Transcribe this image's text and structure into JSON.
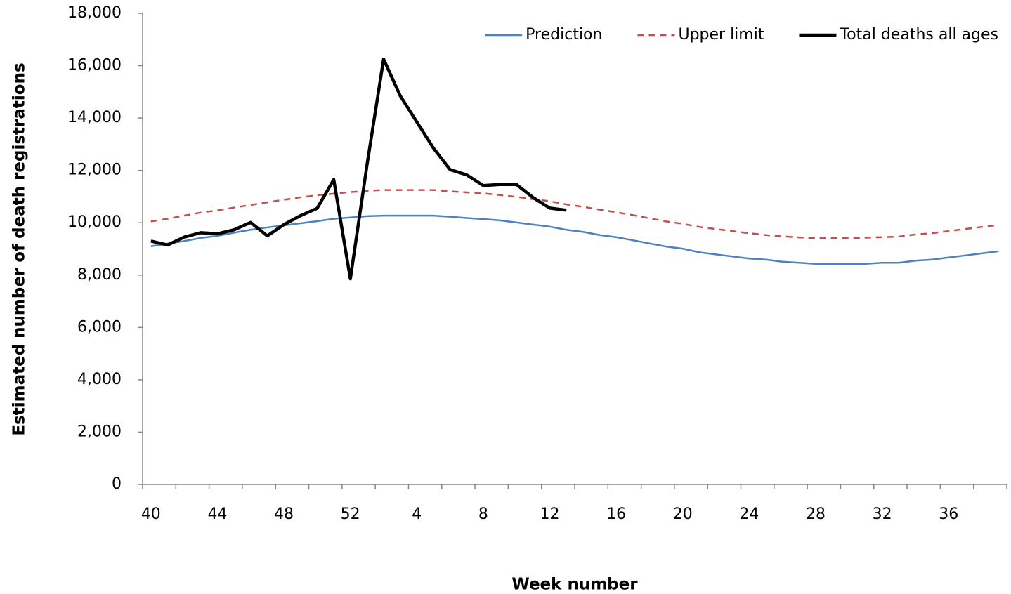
{
  "chart_data": {
    "type": "line",
    "x_label": "Week number",
    "y_label": "Estimated number of death registrations",
    "categories": [
      "40",
      null,
      null,
      null,
      "44",
      null,
      null,
      null,
      "48",
      null,
      null,
      null,
      "52",
      null,
      null,
      null,
      "4",
      null,
      null,
      null,
      "8",
      null,
      null,
      null,
      "12",
      null,
      null,
      null,
      "16",
      null,
      null,
      null,
      "20",
      null,
      null,
      null,
      "24",
      null,
      null,
      null,
      "28",
      null,
      null,
      null,
      "32",
      null,
      null,
      null,
      "36",
      null,
      null,
      null
    ],
    "series": [
      {
        "name": "Prediction",
        "color": "#4f81bd",
        "dash": false,
        "width": 2.5,
        "values": [
          9100,
          9200,
          9300,
          9420,
          9500,
          9620,
          9730,
          9820,
          9900,
          9980,
          10060,
          10150,
          10200,
          10250,
          10270,
          10270,
          10270,
          10270,
          10230,
          10180,
          10140,
          10090,
          10010,
          9930,
          9850,
          9730,
          9650,
          9530,
          9450,
          9330,
          9210,
          9090,
          9010,
          8870,
          8790,
          8710,
          8630,
          8590,
          8510,
          8470,
          8430,
          8430,
          8430,
          8430,
          8470,
          8470,
          8550,
          8590,
          8670,
          8750,
          8830,
          8910
        ]
      },
      {
        "name": "Upper limit",
        "color": "#c0504d",
        "dash": true,
        "width": 2.5,
        "values": [
          10050,
          10150,
          10270,
          10390,
          10470,
          10580,
          10680,
          10780,
          10880,
          10970,
          11050,
          11110,
          11170,
          11220,
          11250,
          11250,
          11250,
          11250,
          11200,
          11160,
          11120,
          11060,
          10990,
          10900,
          10820,
          10700,
          10610,
          10500,
          10400,
          10290,
          10170,
          10050,
          9960,
          9840,
          9760,
          9680,
          9600,
          9530,
          9480,
          9440,
          9410,
          9410,
          9410,
          9430,
          9450,
          9470,
          9550,
          9600,
          9680,
          9760,
          9840,
          9910
        ]
      },
      {
        "name": "Total deaths all ages",
        "color": "#000000",
        "dash": false,
        "width": 4.5,
        "values": [
          9300,
          9150,
          9450,
          9620,
          9580,
          9730,
          10010,
          9500,
          9930,
          10270,
          10550,
          11650,
          7860,
          12200,
          16250,
          14850,
          13850,
          12850,
          12030,
          11830,
          11420,
          11460,
          11460,
          10960,
          10560,
          10480,
          null,
          null,
          null,
          null,
          null,
          null,
          null,
          null,
          null,
          null,
          null,
          null,
          null,
          null,
          null,
          null,
          null,
          null,
          null,
          null,
          null,
          null,
          null,
          null,
          null,
          null
        ]
      }
    ],
    "ylim": [
      0,
      18000
    ],
    "yticks": [
      0,
      {
        "value": 2000,
        "label": "2,000"
      },
      {
        "value": 4000,
        "label": "4,000"
      },
      {
        "value": 6000,
        "label": "6,000"
      },
      {
        "value": 8000,
        "label": "8,000"
      },
      {
        "value": 10000,
        "label": "10,000"
      },
      {
        "value": 12000,
        "label": "12,000"
      },
      {
        "value": 14000,
        "label": "14,000"
      },
      {
        "value": 16000,
        "label": "16,000"
      },
      {
        "value": 18000,
        "label": "18,000"
      }
    ],
    "grid": false,
    "legend": "top-right"
  }
}
